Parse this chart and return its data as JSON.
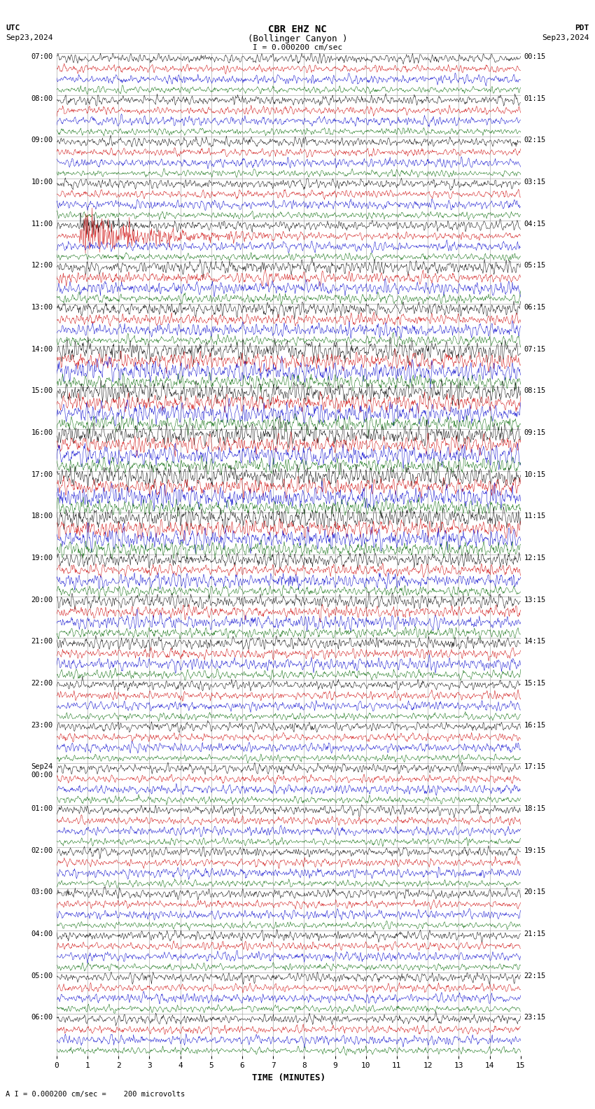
{
  "title_line1": "CBR EHZ NC",
  "title_line2": "(Bollinger Canyon )",
  "scale_text": "I = 0.000200 cm/sec",
  "bottom_text": "A I = 0.000200 cm/sec =    200 microvolts",
  "utc_label": "UTC",
  "utc_date": "Sep23,2024",
  "pdt_label": "PDT",
  "pdt_date": "Sep23,2024",
  "xlabel": "TIME (MINUTES)",
  "xmin": 0,
  "xmax": 15,
  "background_color": "#ffffff",
  "trace_colors": [
    "#000000",
    "#cc0000",
    "#0000cc",
    "#006600"
  ],
  "left_times": [
    "07:00",
    "08:00",
    "09:00",
    "10:00",
    "11:00",
    "12:00",
    "13:00",
    "14:00",
    "15:00",
    "16:00",
    "17:00",
    "18:00",
    "19:00",
    "20:00",
    "21:00",
    "22:00",
    "23:00",
    "Sep24\n00:00",
    "01:00",
    "02:00",
    "03:00",
    "04:00",
    "05:00",
    "06:00"
  ],
  "right_times": [
    "00:15",
    "01:15",
    "02:15",
    "03:15",
    "04:15",
    "05:15",
    "06:15",
    "07:15",
    "08:15",
    "09:15",
    "10:15",
    "11:15",
    "12:15",
    "13:15",
    "14:15",
    "15:15",
    "16:15",
    "17:15",
    "18:15",
    "19:15",
    "20:15",
    "21:15",
    "22:15",
    "23:15"
  ],
  "n_hour_rows": 24,
  "traces_per_hour": 4,
  "fig_width": 8.5,
  "fig_height": 15.84,
  "dpi": 100,
  "grid_color": "#999999",
  "grid_linewidth": 0.4,
  "trace_linewidth": 0.35,
  "noise_amplitudes": [
    0.38,
    0.32,
    0.38,
    0.28
  ]
}
